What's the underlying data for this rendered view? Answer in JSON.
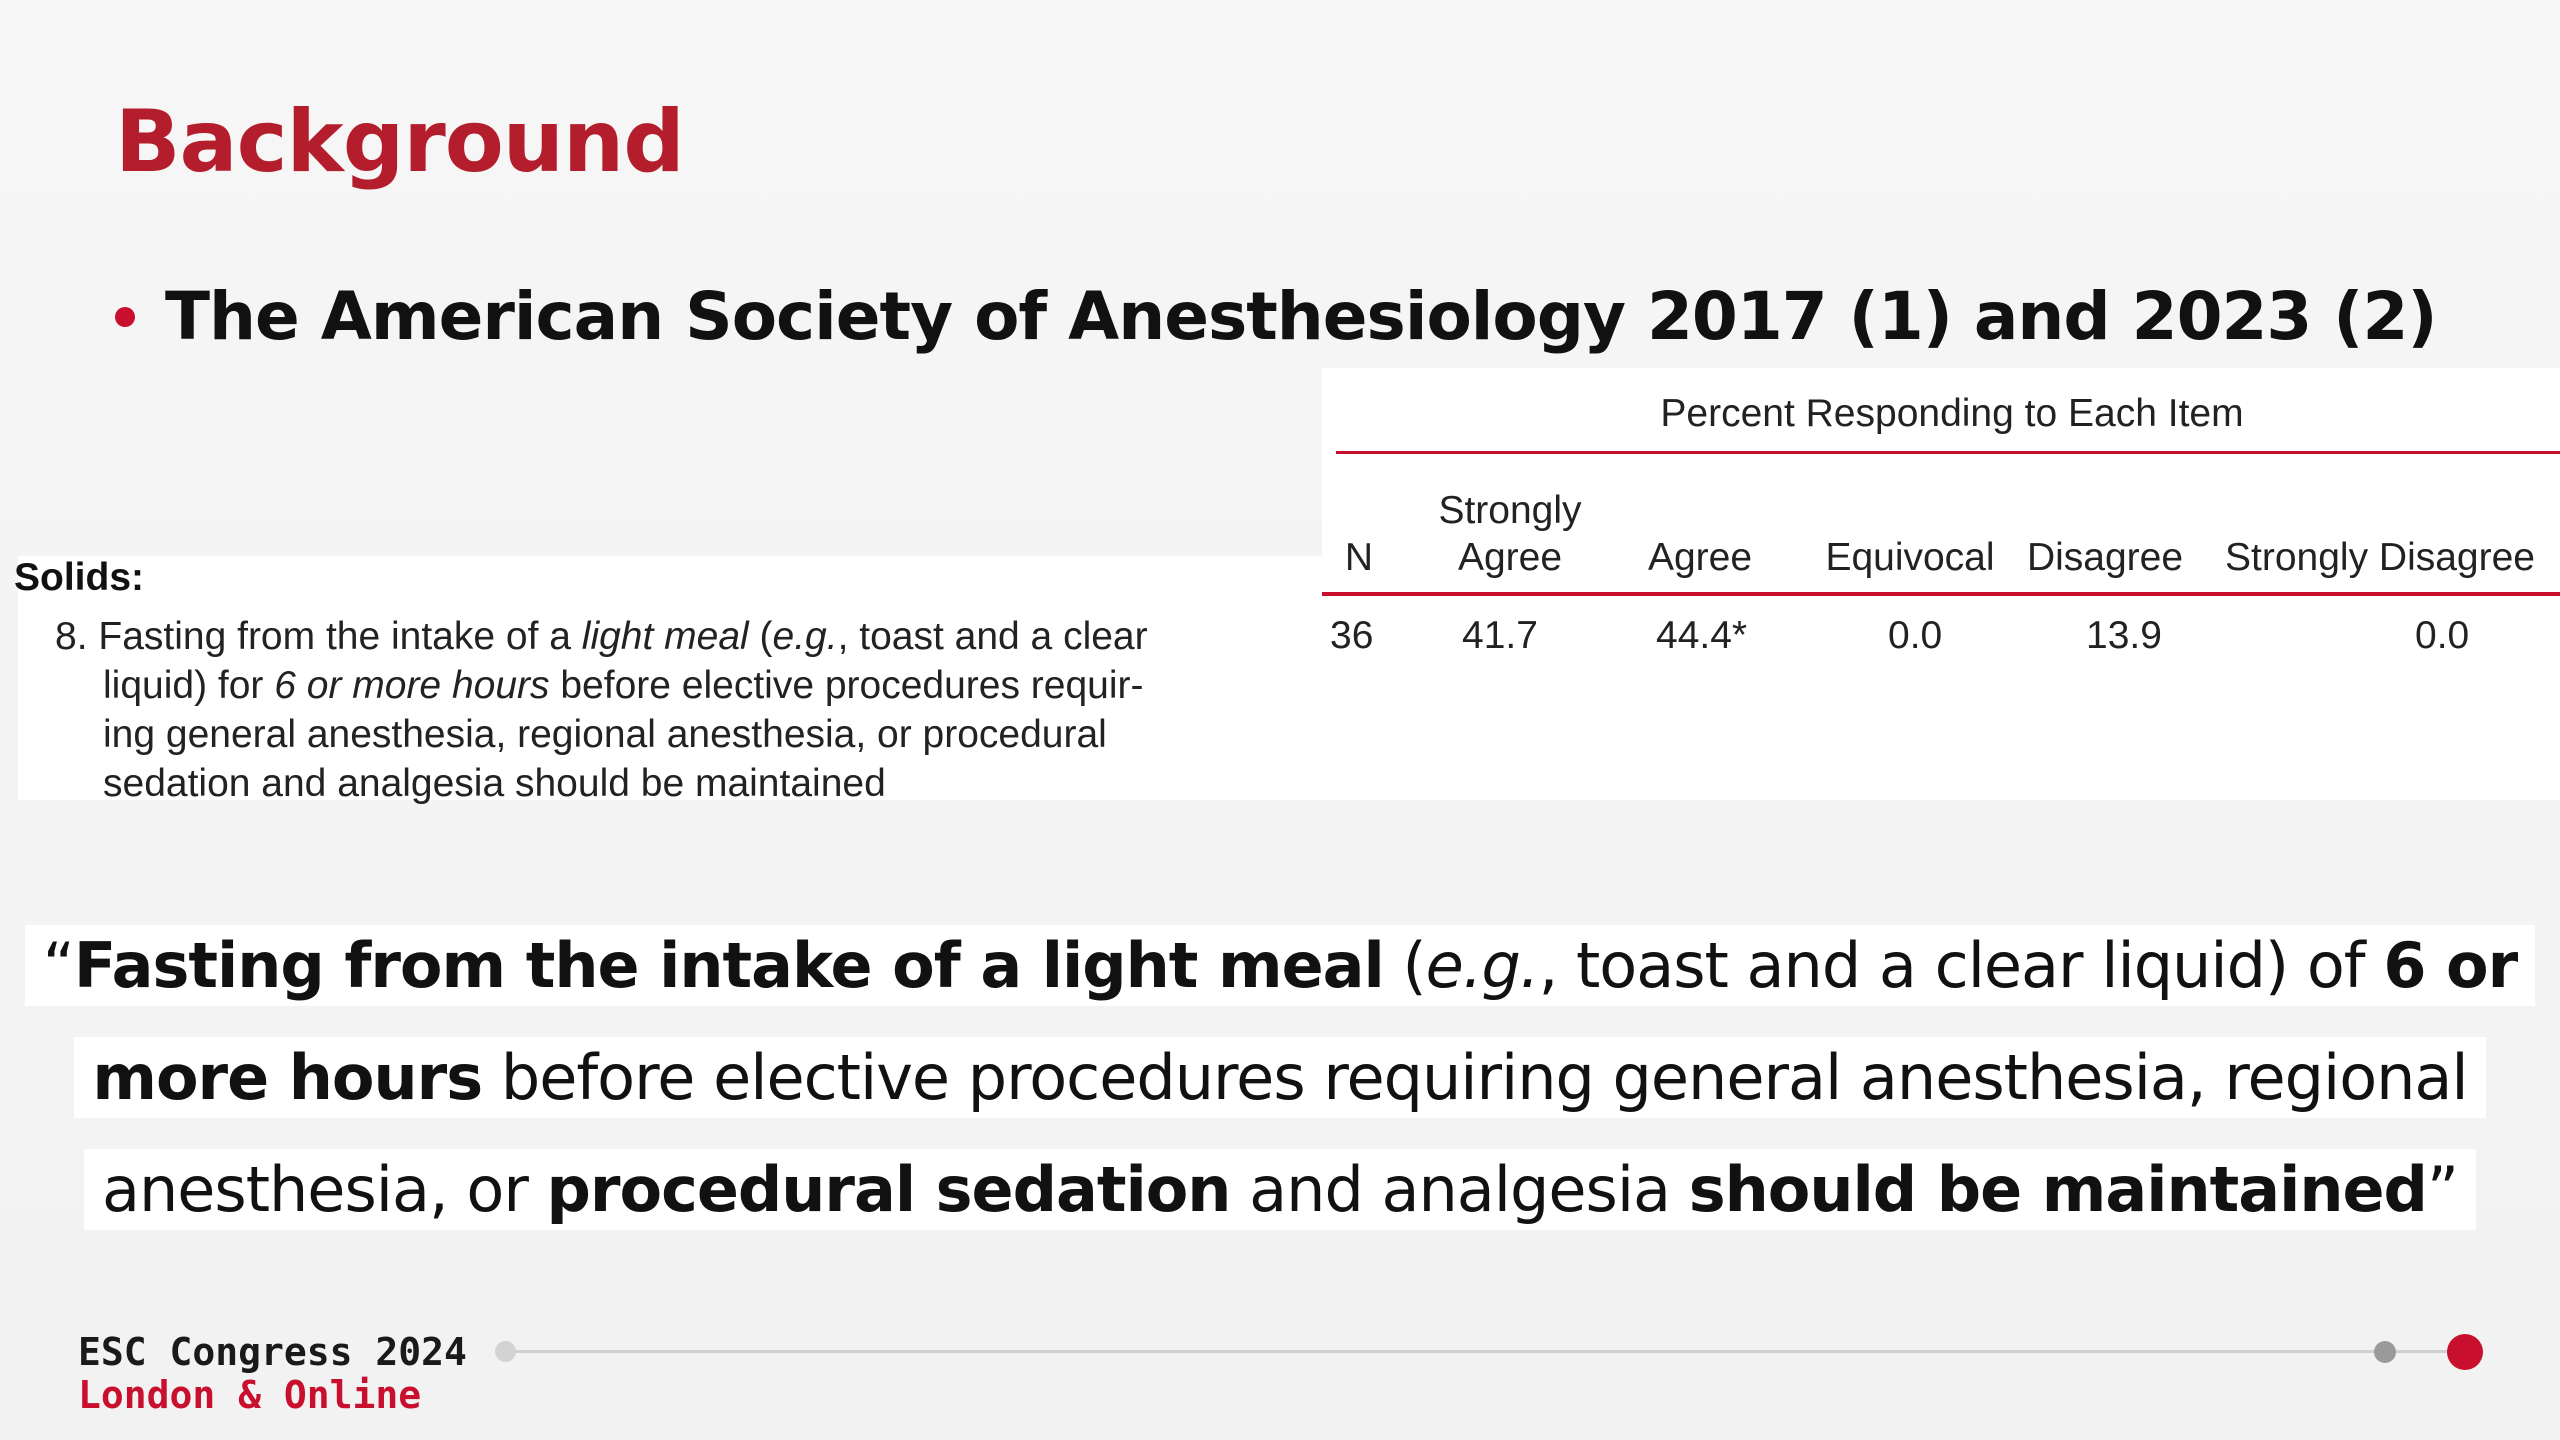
{
  "slide": {
    "title": "Background",
    "bullet": "The American Society of Anesthesiology 2017 (1) and 2023 (2)"
  },
  "table": {
    "group_header": "Percent Responding to Each Item",
    "columns": {
      "n": "N",
      "strongly_agree_1": "Strongly",
      "strongly_agree_2": "Agree",
      "agree": "Agree",
      "equivocal": "Equivocal",
      "disagree": "Disagree",
      "strongly_disagree": "Strongly Disagree"
    },
    "section": "Solids:",
    "item": {
      "number": "8.",
      "line1_a": "Fasting from the intake of a ",
      "line1_b": "light meal",
      "line1_c": " (",
      "line1_d": "e.g.",
      "line1_e": ", toast and a clear",
      "line2_a": "liquid) for ",
      "line2_b": "6 or more hours",
      "line2_c": " before elective procedures requir-",
      "line3": "ing general anesthesia, regional anesthesia, or procedural",
      "line4": "sedation and analgesia should be maintained"
    },
    "row": {
      "n": "36",
      "strongly_agree": "41.7",
      "agree": "44.4*",
      "equivocal": "0.0",
      "disagree": "13.9",
      "strongly_disagree": "0.0"
    }
  },
  "quote": {
    "open": "“",
    "b1": "Fasting from the intake of a light meal",
    "t1": " (",
    "i1": "e.g.",
    "t2": ", toast and a clear liquid) of ",
    "b2": "6 or",
    "b3": "more hours",
    "t3": " before elective procedures requiring general anesthesia, regional",
    "t4": "anesthesia, or ",
    "b4": "procedural sedation",
    "t5": " and analgesia ",
    "b5": "should be maintained",
    "close": "”"
  },
  "footer": {
    "event": "ESC Congress 2024",
    "location": "London & Online"
  },
  "colors": {
    "accent": "#c8102e",
    "title": "#b41e2c"
  }
}
